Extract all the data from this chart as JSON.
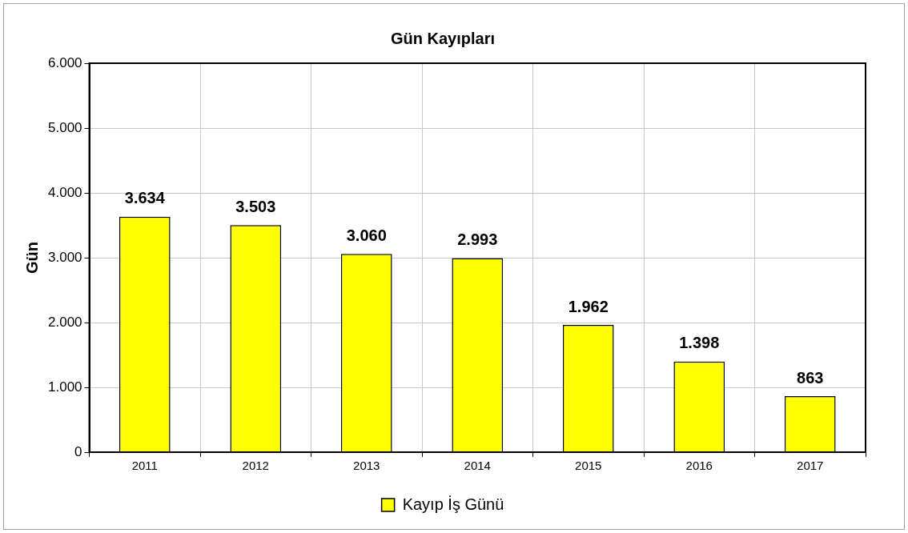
{
  "chart_data": {
    "type": "bar",
    "title": "Gün Kayıpları",
    "ylabel": "Gün",
    "categories": [
      "2011",
      "2012",
      "2013",
      "2014",
      "2015",
      "2016",
      "2017"
    ],
    "series": [
      {
        "name": "Kayıp İş Günü",
        "color": "#ffff00",
        "values": [
          3634,
          3503,
          3060,
          2993,
          1962,
          1398,
          863
        ],
        "value_labels": [
          "3.634",
          "3.503",
          "3.060",
          "2.993",
          "1.962",
          "1.398",
          "863"
        ]
      }
    ],
    "ylim": [
      0,
      6000
    ],
    "yticks": [
      {
        "value": 0,
        "label": "0"
      },
      {
        "value": 1000,
        "label": "1.000"
      },
      {
        "value": 2000,
        "label": "2.000"
      },
      {
        "value": 3000,
        "label": "3.000"
      },
      {
        "value": 4000,
        "label": "4.000"
      },
      {
        "value": 5000,
        "label": "5.000"
      },
      {
        "value": 6000,
        "label": "6.000"
      }
    ],
    "grid": true,
    "legend": "bottom"
  }
}
